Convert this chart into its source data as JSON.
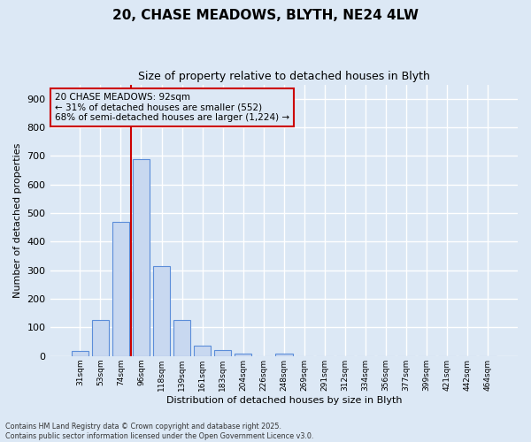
{
  "title_line1": "20, CHASE MEADOWS, BLYTH, NE24 4LW",
  "title_line2": "Size of property relative to detached houses in Blyth",
  "xlabel": "Distribution of detached houses by size in Blyth",
  "ylabel": "Number of detached properties",
  "categories": [
    "31sqm",
    "53sqm",
    "74sqm",
    "96sqm",
    "118sqm",
    "139sqm",
    "161sqm",
    "183sqm",
    "204sqm",
    "226sqm",
    "248sqm",
    "269sqm",
    "291sqm",
    "312sqm",
    "334sqm",
    "356sqm",
    "377sqm",
    "399sqm",
    "421sqm",
    "442sqm",
    "464sqm"
  ],
  "values": [
    18,
    127,
    470,
    690,
    315,
    127,
    35,
    20,
    9,
    0,
    8,
    0,
    0,
    0,
    0,
    0,
    0,
    0,
    0,
    0,
    0
  ],
  "bar_color": "#c8d8f0",
  "bar_edge_color": "#5b8dd9",
  "vline_index": 3,
  "vline_color": "#cc0000",
  "annotation_line1": "20 CHASE MEADOWS: 92sqm",
  "annotation_line2": "← 31% of detached houses are smaller (552)",
  "annotation_line3": "68% of semi-detached houses are larger (1,224) →",
  "annotation_box_color": "#cc0000",
  "ylim": [
    0,
    950
  ],
  "yticks": [
    0,
    100,
    200,
    300,
    400,
    500,
    600,
    700,
    800,
    900
  ],
  "background_color": "#dce8f5",
  "grid_color": "#ffffff",
  "footer_line1": "Contains HM Land Registry data © Crown copyright and database right 2025.",
  "footer_line2": "Contains public sector information licensed under the Open Government Licence v3.0."
}
